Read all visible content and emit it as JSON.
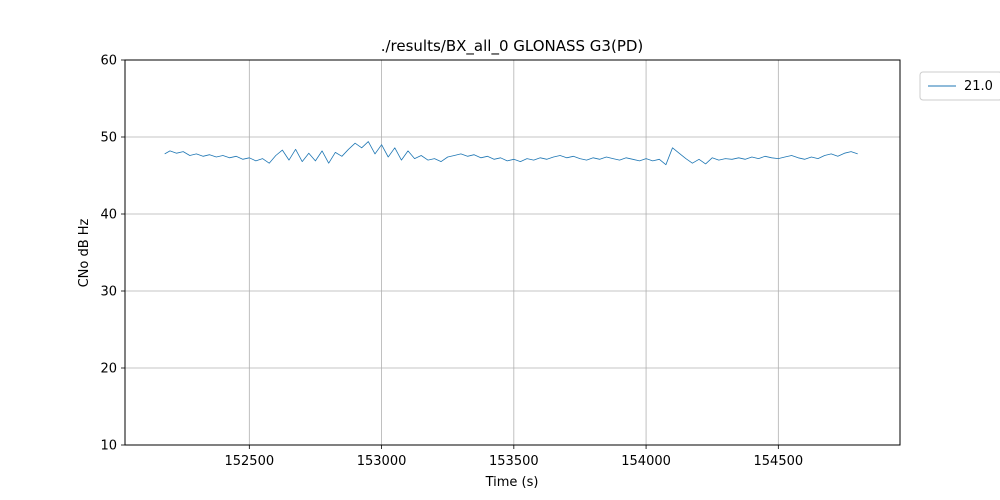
{
  "chart_data": {
    "type": "line",
    "title": "./results/BX_all_0 GLONASS G3(PD)",
    "xlabel": "Time (s)",
    "ylabel": "CNo dB Hz",
    "xlim": [
      152030,
      154960
    ],
    "ylim": [
      10,
      60
    ],
    "x_ticks": [
      152500,
      153000,
      153500,
      154000,
      154500
    ],
    "y_ticks": [
      10,
      20,
      30,
      40,
      50,
      60
    ],
    "grid": true,
    "legend_position": "outside-top-right",
    "color": "#1f77b4",
    "series": [
      {
        "name": "21.0",
        "x": [
          152180,
          152200,
          152225,
          152250,
          152275,
          152300,
          152325,
          152350,
          152375,
          152400,
          152425,
          152450,
          152475,
          152500,
          152525,
          152550,
          152575,
          152600,
          152625,
          152650,
          152675,
          152700,
          152725,
          152750,
          152775,
          152800,
          152825,
          152850,
          152875,
          152900,
          152925,
          152950,
          152975,
          153000,
          153025,
          153050,
          153075,
          153100,
          153125,
          153150,
          153175,
          153200,
          153225,
          153250,
          153275,
          153300,
          153325,
          153350,
          153375,
          153400,
          153425,
          153450,
          153475,
          153500,
          153525,
          153550,
          153575,
          153600,
          153625,
          153650,
          153675,
          153700,
          153725,
          153750,
          153775,
          153800,
          153825,
          153850,
          153875,
          153900,
          153925,
          153950,
          153975,
          154000,
          154025,
          154050,
          154075,
          154100,
          154125,
          154150,
          154175,
          154200,
          154225,
          154250,
          154275,
          154300,
          154325,
          154350,
          154375,
          154400,
          154425,
          154450,
          154475,
          154500,
          154525,
          154550,
          154575,
          154600,
          154625,
          154650,
          154675,
          154700,
          154725,
          154750,
          154775,
          154800
        ],
        "y": [
          47.8,
          48.2,
          47.9,
          48.1,
          47.6,
          47.8,
          47.5,
          47.7,
          47.4,
          47.6,
          47.3,
          47.5,
          47.1,
          47.3,
          46.9,
          47.2,
          46.6,
          47.6,
          48.3,
          47.0,
          48.4,
          46.8,
          47.9,
          46.9,
          48.2,
          46.6,
          48.0,
          47.5,
          48.4,
          49.2,
          48.6,
          49.4,
          47.8,
          49.0,
          47.4,
          48.6,
          47.0,
          48.2,
          47.2,
          47.6,
          47.0,
          47.2,
          46.8,
          47.4,
          47.6,
          47.8,
          47.5,
          47.7,
          47.3,
          47.5,
          47.1,
          47.3,
          46.9,
          47.1,
          46.8,
          47.2,
          47.0,
          47.3,
          47.1,
          47.4,
          47.6,
          47.3,
          47.5,
          47.2,
          47.0,
          47.3,
          47.1,
          47.4,
          47.2,
          47.0,
          47.3,
          47.1,
          46.9,
          47.2,
          46.9,
          47.1,
          46.4,
          48.6,
          47.9,
          47.2,
          46.6,
          47.1,
          46.5,
          47.3,
          47.0,
          47.2,
          47.1,
          47.3,
          47.1,
          47.4,
          47.2,
          47.5,
          47.3,
          47.2,
          47.4,
          47.6,
          47.3,
          47.1,
          47.4,
          47.2,
          47.6,
          47.8,
          47.5,
          47.9,
          48.1,
          47.8
        ]
      }
    ]
  }
}
